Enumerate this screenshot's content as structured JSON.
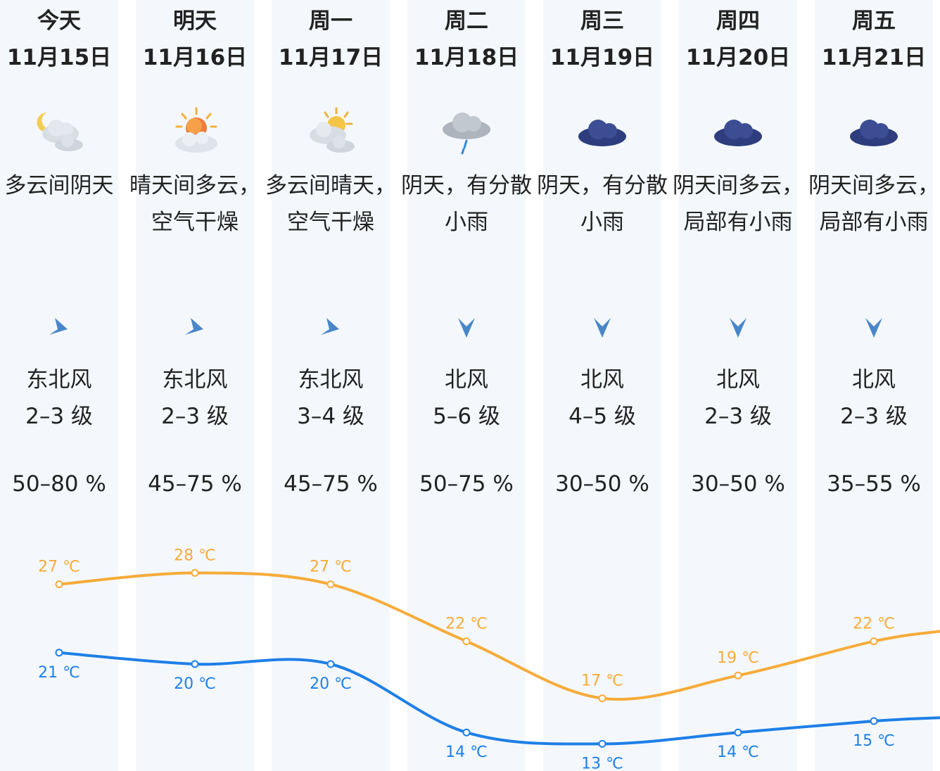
{
  "colors": {
    "column_bg": "#f4f8fd",
    "high_line": "#f6ab3a",
    "low_line": "#1f7fe6",
    "wind_arrow": "#4a86c8"
  },
  "days": [
    {
      "weekday": "今天",
      "date": "11月15日",
      "icon": "partly-cloudy-night-icon",
      "desc": "多云间阴天",
      "wind_icon": "wind-arrow-northeast-icon",
      "wind_dir": "东北风",
      "wind_level": "2–3 级",
      "humidity": "50–80 %",
      "high": "27 ℃",
      "low": "21 ℃"
    },
    {
      "weekday": "明天",
      "date": "11月16日",
      "icon": "sunny-cloudy-icon",
      "desc": "晴天间多云，空气干燥",
      "wind_icon": "wind-arrow-northeast-icon",
      "wind_dir": "东北风",
      "wind_level": "2–3 级",
      "humidity": "45–75 %",
      "high": "28 ℃",
      "low": "20 ℃"
    },
    {
      "weekday": "周一",
      "date": "11月17日",
      "icon": "cloudy-sunny-icon",
      "desc": "多云间晴天，空气干燥",
      "wind_icon": "wind-arrow-northeast-icon",
      "wind_dir": "东北风",
      "wind_level": "3–4 级",
      "humidity": "45–75 %",
      "high": "27 ℃",
      "low": "20 ℃"
    },
    {
      "weekday": "周二",
      "date": "11月18日",
      "icon": "light-rain-icon",
      "desc": "阴天，有分散小雨",
      "wind_icon": "wind-arrow-north-icon",
      "wind_dir": "北风",
      "wind_level": "5–6 级",
      "humidity": "50–75 %",
      "high": "22 ℃",
      "low": "14 ℃"
    },
    {
      "weekday": "周三",
      "date": "11月19日",
      "icon": "overcast-icon",
      "desc": "阴天，有分散小雨",
      "wind_icon": "wind-arrow-north-icon",
      "wind_dir": "北风",
      "wind_level": "4–5 级",
      "humidity": "30–50 %",
      "high": "17 ℃",
      "low": "13 ℃"
    },
    {
      "weekday": "周四",
      "date": "11月20日",
      "icon": "overcast-icon",
      "desc": "阴天间多云，局部有小雨",
      "wind_icon": "wind-arrow-north-icon",
      "wind_dir": "北风",
      "wind_level": "2–3 级",
      "humidity": "30–50 %",
      "high": "19 ℃",
      "low": "14 ℃"
    },
    {
      "weekday": "周五",
      "date": "11月21日",
      "icon": "overcast-icon",
      "desc": "阴天间多云，局部有小雨",
      "wind_icon": "wind-arrow-north-icon",
      "wind_dir": "北风",
      "wind_level": "2–3 级",
      "humidity": "35–55 %",
      "high": "22 ℃",
      "low": "15 ℃"
    }
  ],
  "chart_data": {
    "type": "line",
    "categories": [
      "11月15日",
      "11月16日",
      "11月17日",
      "11月18日",
      "11月19日",
      "11月20日",
      "11月21日"
    ],
    "series": [
      {
        "values": [
          27,
          28,
          27,
          22,
          17,
          19,
          22
        ],
        "color": "#f6ab3a"
      },
      {
        "values": [
          21,
          20,
          20,
          14,
          13,
          14,
          15
        ],
        "color": "#1f7fe6"
      }
    ],
    "unit": "℃"
  }
}
